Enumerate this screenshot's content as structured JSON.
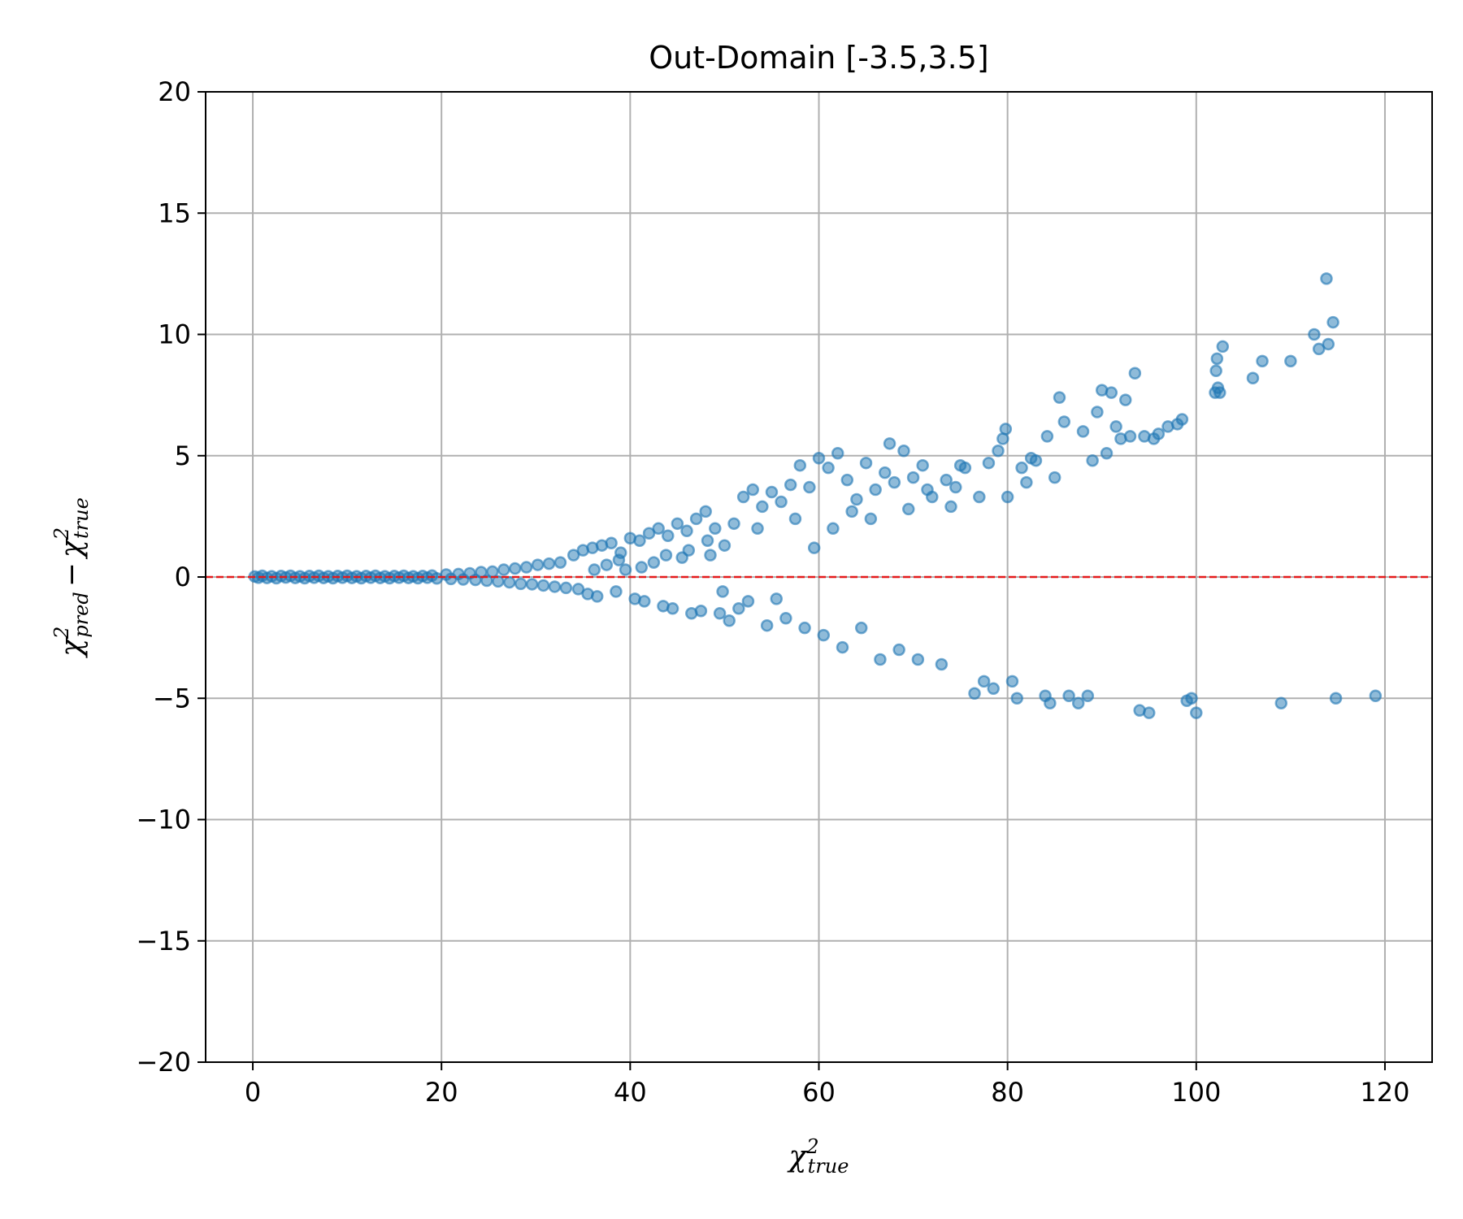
{
  "chart_data": {
    "type": "scatter",
    "title": "Out-Domain [-3.5,3.5]",
    "xlabel": {
      "base": "χ",
      "sup": "2",
      "sub": "true"
    },
    "ylabel": {
      "a_base": "χ",
      "a_sup": "2",
      "a_sub": "pred",
      "op": "−",
      "b_base": "χ",
      "b_sup": "2",
      "b_sub": "true"
    },
    "xlim": [
      -5,
      125
    ],
    "ylim": [
      -20,
      20
    ],
    "xticks": [
      {
        "value": 0,
        "label": "0"
      },
      {
        "value": 20,
        "label": "20"
      },
      {
        "value": 40,
        "label": "40"
      },
      {
        "value": 60,
        "label": "60"
      },
      {
        "value": 80,
        "label": "80"
      },
      {
        "value": 100,
        "label": "100"
      },
      {
        "value": 120,
        "label": "120"
      }
    ],
    "yticks": [
      {
        "value": 20,
        "label": "20"
      },
      {
        "value": 15,
        "label": "15"
      },
      {
        "value": 10,
        "label": "10"
      },
      {
        "value": 5,
        "label": "5"
      },
      {
        "value": 0,
        "label": "0"
      },
      {
        "value": -5,
        "label": "−5"
      },
      {
        "value": -10,
        "label": "−10"
      },
      {
        "value": -15,
        "label": "−15"
      },
      {
        "value": -20,
        "label": "−20"
      }
    ],
    "grid": true,
    "reference_line": {
      "y": 0,
      "color": "#e41a1c",
      "style": "dashed"
    },
    "marker_color": "#1f77b4",
    "series": [
      {
        "points": [
          [
            0.2,
            0.02
          ],
          [
            0.6,
            -0.03
          ],
          [
            1.0,
            0.05
          ],
          [
            1.5,
            -0.04
          ],
          [
            2.0,
            0.03
          ],
          [
            2.5,
            -0.05
          ],
          [
            3.0,
            0.04
          ],
          [
            3.5,
            -0.02
          ],
          [
            4.0,
            0.05
          ],
          [
            4.5,
            -0.04
          ],
          [
            5.0,
            0.03
          ],
          [
            5.5,
            -0.05
          ],
          [
            6.0,
            0.04
          ],
          [
            6.5,
            -0.03
          ],
          [
            7.0,
            0.05
          ],
          [
            7.5,
            -0.04
          ],
          [
            8.0,
            0.03
          ],
          [
            8.5,
            -0.05
          ],
          [
            9.0,
            0.04
          ],
          [
            9.5,
            -0.03
          ],
          [
            10.0,
            0.05
          ],
          [
            10.5,
            -0.04
          ],
          [
            11.0,
            0.03
          ],
          [
            11.5,
            -0.05
          ],
          [
            12.0,
            0.04
          ],
          [
            12.5,
            -0.03
          ],
          [
            13.0,
            0.05
          ],
          [
            13.5,
            -0.04
          ],
          [
            14.0,
            0.03
          ],
          [
            14.5,
            -0.05
          ],
          [
            15.0,
            0.04
          ],
          [
            15.5,
            -0.03
          ],
          [
            16.0,
            0.05
          ],
          [
            16.5,
            -0.04
          ],
          [
            17.0,
            0.03
          ],
          [
            17.5,
            -0.05
          ],
          [
            18.0,
            0.04
          ],
          [
            18.5,
            -0.03
          ],
          [
            19.0,
            0.06
          ],
          [
            19.5,
            -0.06
          ],
          [
            20.5,
            0.1
          ],
          [
            21.0,
            -0.08
          ],
          [
            21.8,
            0.12
          ],
          [
            22.3,
            -0.1
          ],
          [
            23.0,
            0.15
          ],
          [
            23.6,
            -0.12
          ],
          [
            24.2,
            0.2
          ],
          [
            24.8,
            -0.15
          ],
          [
            25.4,
            0.22
          ],
          [
            26.0,
            -0.18
          ],
          [
            26.6,
            0.3
          ],
          [
            27.2,
            -0.22
          ],
          [
            27.8,
            0.35
          ],
          [
            28.4,
            -0.28
          ],
          [
            29.0,
            0.4
          ],
          [
            29.6,
            -0.3
          ],
          [
            30.2,
            0.5
          ],
          [
            30.8,
            -0.35
          ],
          [
            31.4,
            0.55
          ],
          [
            32.0,
            -0.4
          ],
          [
            32.6,
            0.6
          ],
          [
            33.2,
            -0.45
          ],
          [
            34.0,
            0.9
          ],
          [
            34.5,
            -0.5
          ],
          [
            35.0,
            1.1
          ],
          [
            35.5,
            -0.7
          ],
          [
            36.0,
            1.2
          ],
          [
            36.5,
            -0.8
          ],
          [
            37.0,
            1.3
          ],
          [
            37.5,
            0.5
          ],
          [
            38.0,
            1.4
          ],
          [
            38.5,
            -0.6
          ],
          [
            39.0,
            1.0
          ],
          [
            39.5,
            0.3
          ],
          [
            40.0,
            1.6
          ],
          [
            40.5,
            -0.9
          ],
          [
            41.0,
            1.5
          ],
          [
            41.5,
            -1.0
          ],
          [
            42.0,
            1.8
          ],
          [
            42.5,
            0.6
          ],
          [
            43.0,
            2.0
          ],
          [
            43.5,
            -1.2
          ],
          [
            44.0,
            1.7
          ],
          [
            44.5,
            -1.3
          ],
          [
            45.0,
            2.2
          ],
          [
            45.5,
            0.8
          ],
          [
            46.0,
            1.9
          ],
          [
            46.5,
            -1.5
          ],
          [
            47.0,
            2.4
          ],
          [
            47.5,
            -1.4
          ],
          [
            48.0,
            2.7
          ],
          [
            48.5,
            0.9
          ],
          [
            49.0,
            2.0
          ],
          [
            49.5,
            -1.5
          ],
          [
            36.2,
            0.3
          ],
          [
            38.8,
            0.7
          ],
          [
            41.2,
            0.4
          ],
          [
            43.8,
            0.9
          ],
          [
            46.2,
            1.1
          ],
          [
            48.2,
            1.5
          ],
          [
            49.8,
            -0.6
          ],
          [
            50.0,
            1.3
          ],
          [
            50.5,
            -1.8
          ],
          [
            51.0,
            2.2
          ],
          [
            51.5,
            -1.3
          ],
          [
            52.0,
            3.3
          ],
          [
            52.5,
            -1.0
          ],
          [
            53.0,
            3.6
          ],
          [
            53.5,
            2.0
          ],
          [
            54.0,
            2.9
          ],
          [
            54.5,
            -2.0
          ],
          [
            55.0,
            3.5
          ],
          [
            55.5,
            -0.9
          ],
          [
            56.0,
            3.1
          ],
          [
            56.5,
            -1.7
          ],
          [
            57.0,
            3.8
          ],
          [
            57.5,
            2.4
          ],
          [
            58.0,
            4.6
          ],
          [
            58.5,
            -2.1
          ],
          [
            59.0,
            3.7
          ],
          [
            59.5,
            1.2
          ],
          [
            60.0,
            4.9
          ],
          [
            60.5,
            -2.4
          ],
          [
            61.0,
            4.5
          ],
          [
            61.5,
            2.0
          ],
          [
            62.0,
            5.1
          ],
          [
            62.5,
            -2.9
          ],
          [
            63.0,
            4.0
          ],
          [
            63.5,
            2.7
          ],
          [
            64.0,
            3.2
          ],
          [
            64.5,
            -2.1
          ],
          [
            65.0,
            4.7
          ],
          [
            65.5,
            2.4
          ],
          [
            66.0,
            3.6
          ],
          [
            66.5,
            -3.4
          ],
          [
            67.0,
            4.3
          ],
          [
            67.5,
            5.5
          ],
          [
            68.0,
            3.9
          ],
          [
            68.5,
            -3.0
          ],
          [
            69.0,
            5.2
          ],
          [
            69.5,
            2.8
          ],
          [
            70.0,
            4.1
          ],
          [
            70.5,
            -3.4
          ],
          [
            71.0,
            4.6
          ],
          [
            71.5,
            3.6
          ],
          [
            72.0,
            3.3
          ],
          [
            73.0,
            -3.6
          ],
          [
            73.5,
            4.0
          ],
          [
            74.0,
            2.9
          ],
          [
            74.5,
            3.7
          ],
          [
            75.0,
            4.6
          ],
          [
            75.5,
            4.5
          ],
          [
            76.5,
            -4.8
          ],
          [
            77.0,
            3.3
          ],
          [
            77.5,
            -4.3
          ],
          [
            78.0,
            4.7
          ],
          [
            78.5,
            -4.6
          ],
          [
            79.0,
            5.2
          ],
          [
            79.5,
            5.7
          ],
          [
            79.8,
            6.1
          ],
          [
            80.0,
            3.3
          ],
          [
            80.5,
            -4.3
          ],
          [
            81.0,
            -5.0
          ],
          [
            81.5,
            4.5
          ],
          [
            82.0,
            3.9
          ],
          [
            82.5,
            4.9
          ],
          [
            83.0,
            4.8
          ],
          [
            84.0,
            -4.9
          ],
          [
            84.2,
            5.8
          ],
          [
            84.5,
            -5.2
          ],
          [
            85.0,
            4.1
          ],
          [
            85.5,
            7.4
          ],
          [
            86.0,
            6.4
          ],
          [
            86.5,
            -4.9
          ],
          [
            87.5,
            -5.2
          ],
          [
            88.0,
            6.0
          ],
          [
            88.5,
            -4.9
          ],
          [
            89.0,
            4.8
          ],
          [
            89.5,
            6.8
          ],
          [
            90.0,
            7.7
          ],
          [
            90.5,
            5.1
          ],
          [
            91.0,
            7.6
          ],
          [
            91.5,
            6.2
          ],
          [
            92.0,
            5.7
          ],
          [
            92.5,
            7.3
          ],
          [
            93.0,
            5.8
          ],
          [
            93.5,
            8.4
          ],
          [
            94.0,
            -5.5
          ],
          [
            94.5,
            5.8
          ],
          [
            95.0,
            -5.6
          ],
          [
            95.5,
            5.7
          ],
          [
            96.0,
            5.9
          ],
          [
            97.0,
            6.2
          ],
          [
            98.0,
            6.3
          ],
          [
            98.5,
            6.5
          ],
          [
            99.0,
            -5.1
          ],
          [
            99.5,
            -5.0
          ],
          [
            100.0,
            -5.6
          ],
          [
            102.0,
            7.6
          ],
          [
            102.1,
            8.5
          ],
          [
            102.2,
            9.0
          ],
          [
            102.3,
            7.8
          ],
          [
            102.5,
            7.6
          ],
          [
            102.8,
            9.5
          ],
          [
            106.0,
            8.2
          ],
          [
            107.0,
            8.9
          ],
          [
            109.0,
            -5.2
          ],
          [
            110.0,
            8.9
          ],
          [
            112.5,
            10.0
          ],
          [
            113.0,
            9.4
          ],
          [
            113.8,
            12.3
          ],
          [
            114.0,
            9.6
          ],
          [
            114.5,
            10.5
          ],
          [
            114.8,
            -5.0
          ],
          [
            119.0,
            -4.9
          ]
        ]
      }
    ]
  }
}
